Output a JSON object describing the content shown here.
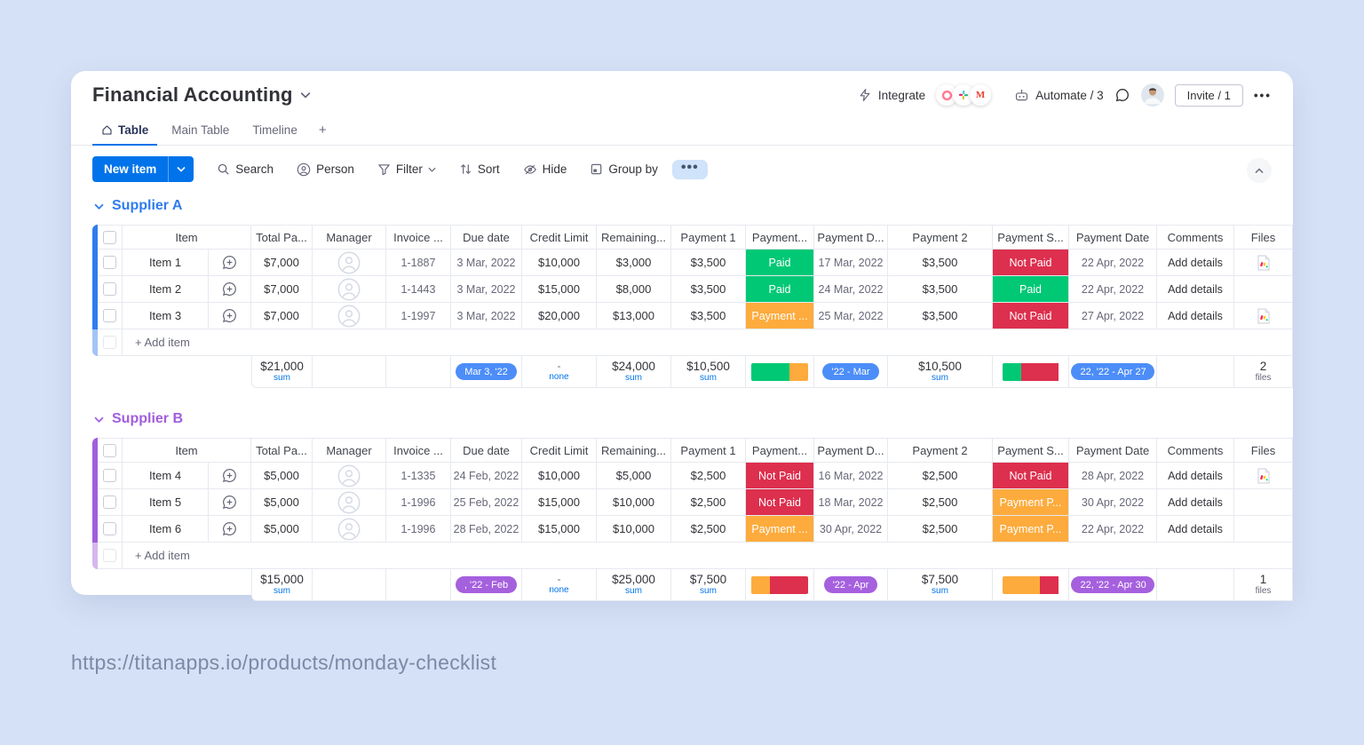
{
  "page": {
    "url": "https://titanapps.io/products/monday-checklist"
  },
  "board": {
    "title": "Financial Accounting",
    "tabs": [
      {
        "label": "Table"
      },
      {
        "label": "Main Table"
      },
      {
        "label": "Timeline"
      },
      {
        "label": "+"
      }
    ],
    "topbar": {
      "integrate": "Integrate",
      "automate": "Automate / 3",
      "invite": "Invite / 1",
      "menu": "•••"
    },
    "toolbar": {
      "new_item": "New item",
      "search": "Search",
      "person": "Person",
      "filter": "Filter",
      "sort": "Sort",
      "hide": "Hide",
      "group_by": "Group by",
      "more": "•••"
    }
  },
  "icons": [
    "home-icon",
    "search-icon",
    "person-icon",
    "filter-icon",
    "sort-icon",
    "hide-icon",
    "group-by-icon",
    "integrate-zap-icon",
    "automate-robot-icon",
    "chat-bubble-icon",
    "chevron-down-icon",
    "collapse-up-icon",
    "conversation-plus-icon",
    "manager-avatar-icon",
    "file-doc-icon"
  ],
  "colors": {
    "accent_blue": "#0073ea",
    "paid_green": "#00c875",
    "not_paid_red": "#dd2f4e",
    "pending_orange": "#fdab3d",
    "group_a": "#2f7cee",
    "group_b": "#a25ddc",
    "background": "#d5e1f6"
  },
  "status_colors": {
    "Paid": "#00c875",
    "Not Paid": "#dd2f4e",
    "Payment ...": "#fdab3d",
    "Payment P...": "#fdab3d"
  },
  "table": {
    "columns": [
      "Item",
      "Total Pa...",
      "Manager",
      "Invoice ...",
      "Due date",
      "Credit Limit",
      "Remaining...",
      "Payment 1",
      "Payment...",
      "Payment D...",
      "Payment 2",
      "Payment S...",
      "Payment Date",
      "Comments",
      "Files"
    ],
    "add_item_label": "+ Add item",
    "sum_label": "sum",
    "files_label": "files",
    "none_label": "none",
    "dash": "-",
    "add_details": "Add details"
  },
  "groups": [
    {
      "name": "Supplier A",
      "color": "#2f7cee",
      "pill_color": "#4c8df8",
      "rows": [
        {
          "name": "Item 1",
          "total": "$7,000",
          "invoice": "1-1887",
          "due": "3 Mar, 2022",
          "credit": "$10,000",
          "remaining": "$3,000",
          "p1": "$3,500",
          "s1": "Paid",
          "pd": "17 Mar, 2022",
          "p2": "$3,500",
          "s2": "Not Paid",
          "pdate": "22 Apr, 2022",
          "comments": "Add details",
          "file": true
        },
        {
          "name": "Item 2",
          "total": "$7,000",
          "invoice": "1-1443",
          "due": "3 Mar, 2022",
          "credit": "$15,000",
          "remaining": "$8,000",
          "p1": "$3,500",
          "s1": "Paid",
          "pd": "24 Mar, 2022",
          "p2": "$3,500",
          "s2": "Paid",
          "pdate": "22 Apr, 2022",
          "comments": "Add details",
          "file": false
        },
        {
          "name": "Item 3",
          "total": "$7,000",
          "invoice": "1-1997",
          "due": "3 Mar, 2022",
          "credit": "$20,000",
          "remaining": "$13,000",
          "p1": "$3,500",
          "s1": "Payment ...",
          "pd": "25 Mar, 2022",
          "p2": "$3,500",
          "s2": "Not Paid",
          "pdate": "27 Apr, 2022",
          "comments": "Add details",
          "file": true
        }
      ],
      "summary": {
        "total": "$21,000",
        "due_pill": "Mar 3, '22",
        "credit_dash": "-",
        "remaining": "$24,000",
        "p1": "$10,500",
        "battery1": [
          [
            "#00c875",
            67
          ],
          [
            "#fdab3d",
            33
          ]
        ],
        "pd_pill": "'22 - Mar",
        "p2": "$10,500",
        "battery2": [
          [
            "#00c875",
            33
          ],
          [
            "#dd2f4e",
            67
          ]
        ],
        "pdate_pill": "22, '22 - Apr 27",
        "files_count": "2"
      }
    },
    {
      "name": "Supplier B",
      "color": "#a25ddc",
      "pill_color": "#a560de",
      "rows": [
        {
          "name": "Item 4",
          "total": "$5,000",
          "invoice": "1-1335",
          "due": "24 Feb, 2022",
          "credit": "$10,000",
          "remaining": "$5,000",
          "p1": "$2,500",
          "s1": "Not Paid",
          "pd": "16 Mar, 2022",
          "p2": "$2,500",
          "s2": "Not Paid",
          "pdate": "28 Apr, 2022",
          "comments": "Add details",
          "file": true
        },
        {
          "name": "Item 5",
          "total": "$5,000",
          "invoice": "1-1996",
          "due": "25 Feb, 2022",
          "credit": "$15,000",
          "remaining": "$10,000",
          "p1": "$2,500",
          "s1": "Not Paid",
          "pd": "18 Mar, 2022",
          "p2": "$2,500",
          "s2": "Payment P...",
          "pdate": "30 Apr, 2022",
          "comments": "Add details",
          "file": false
        },
        {
          "name": "Item 6",
          "total": "$5,000",
          "invoice": "1-1996",
          "due": "28 Feb, 2022",
          "credit": "$15,000",
          "remaining": "$10,000",
          "p1": "$2,500",
          "s1": "Payment ...",
          "pd": "30 Apr, 2022",
          "p2": "$2,500",
          "s2": "Payment P...",
          "pdate": "22 Apr, 2022",
          "comments": "Add details",
          "file": false
        }
      ],
      "summary": {
        "total": "$15,000",
        "due_pill": ", '22 - Feb",
        "credit_dash": "-",
        "remaining": "$25,000",
        "p1": "$7,500",
        "battery1": [
          [
            "#fdab3d",
            33
          ],
          [
            "#dd2f4e",
            67
          ]
        ],
        "pd_pill": "'22 - Apr",
        "p2": "$7,500",
        "battery2": [
          [
            "#fdab3d",
            67
          ],
          [
            "#dd2f4e",
            33
          ]
        ],
        "pdate_pill": "22, '22 - Apr 30",
        "files_count": "1"
      }
    }
  ]
}
